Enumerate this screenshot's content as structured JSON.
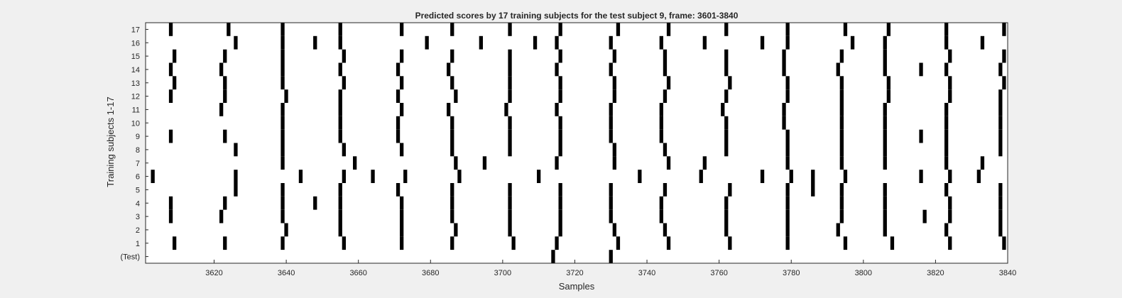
{
  "chart_data": {
    "type": "heatmap",
    "title": "Predicted scores by 17 training subjects for the test subject 9, frame: 3601-3840",
    "xlabel": "Samples",
    "ylabel": "Training subjects 1-17",
    "xlim": [
      3601,
      3840
    ],
    "x_ticks": [
      3620,
      3640,
      3660,
      3680,
      3700,
      3720,
      3740,
      3760,
      3780,
      3800,
      3820,
      3840
    ],
    "y_tick_labels": [
      "(Test)",
      "1",
      "2",
      "3",
      "4",
      "5",
      "6",
      "7",
      "8",
      "9",
      "10",
      "11",
      "12",
      "13",
      "14",
      "15",
      "16",
      "17"
    ],
    "background_color": "#ffffff",
    "mark_color": "#000000",
    "grid": false,
    "legend": "none",
    "rows": [
      {
        "label": "(Test)",
        "x": [
          3714,
          3730
        ]
      },
      {
        "label": "1",
        "x": [
          3609,
          3623,
          3639,
          3656,
          3672,
          3686,
          3703,
          3715,
          3732,
          3746,
          3763,
          3779,
          3795,
          3808,
          3824,
          3839
        ]
      },
      {
        "label": "2",
        "x": [
          3640,
          3655,
          3672,
          3687,
          3702,
          3716,
          3731,
          3745,
          3762,
          3779,
          3793,
          3806,
          3823,
          3838
        ]
      },
      {
        "label": "3",
        "x": [
          3608,
          3622,
          3639,
          3655,
          3672,
          3686,
          3702,
          3716,
          3730,
          3744,
          3762,
          3779,
          3794,
          3806,
          3817,
          3824,
          3838
        ]
      },
      {
        "label": "4",
        "x": [
          3608,
          3623,
          3639,
          3648,
          3655,
          3672,
          3686,
          3702,
          3716,
          3730,
          3744,
          3762,
          3779,
          3794,
          3806,
          3824,
          3838
        ]
      },
      {
        "label": "5",
        "x": [
          3626,
          3639,
          3655,
          3671,
          3686,
          3702,
          3716,
          3730,
          3745,
          3763,
          3779,
          3786,
          3794,
          3806,
          3823,
          3838
        ]
      },
      {
        "label": "6",
        "x": [
          3603,
          3626,
          3644,
          3656,
          3664,
          3673,
          3688,
          3710,
          3738,
          3755,
          3772,
          3780,
          3786,
          3795,
          3816,
          3824,
          3832
        ]
      },
      {
        "label": "7",
        "x": [
          3639,
          3659,
          3687,
          3695,
          3715,
          3731,
          3746,
          3756,
          3779,
          3794,
          3806,
          3823,
          3833
        ]
      },
      {
        "label": "8",
        "x": [
          3626,
          3639,
          3656,
          3672,
          3686,
          3702,
          3716,
          3731,
          3745,
          3762,
          3779,
          3794,
          3806,
          3823,
          3838
        ]
      },
      {
        "label": "9",
        "x": [
          3608,
          3623,
          3639,
          3655,
          3671,
          3686,
          3702,
          3716,
          3730,
          3744,
          3762,
          3779,
          3794,
          3806,
          3816,
          3823,
          3838
        ]
      },
      {
        "label": "10",
        "x": [
          3639,
          3655,
          3671,
          3686,
          3702,
          3716,
          3730,
          3744,
          3762,
          3778,
          3794,
          3806,
          3823,
          3838
        ]
      },
      {
        "label": "11",
        "x": [
          3622,
          3639,
          3655,
          3672,
          3685,
          3701,
          3715,
          3730,
          3744,
          3761,
          3778,
          3794,
          3806,
          3823,
          3838
        ]
      },
      {
        "label": "12",
        "x": [
          3608,
          3623,
          3640,
          3655,
          3671,
          3687,
          3702,
          3716,
          3731,
          3745,
          3762,
          3779,
          3794,
          3807,
          3824,
          3838
        ]
      },
      {
        "label": "13",
        "x": [
          3609,
          3623,
          3639,
          3656,
          3672,
          3686,
          3702,
          3716,
          3731,
          3746,
          3763,
          3779,
          3794,
          3807,
          3824,
          3839
        ]
      },
      {
        "label": "14",
        "x": [
          3608,
          3622,
          3639,
          3655,
          3671,
          3685,
          3702,
          3715,
          3730,
          3745,
          3762,
          3778,
          3793,
          3806,
          3816,
          3823,
          3838
        ]
      },
      {
        "label": "15",
        "x": [
          3609,
          3623,
          3639,
          3656,
          3672,
          3686,
          3702,
          3716,
          3731,
          3745,
          3762,
          3778,
          3794,
          3806,
          3824,
          3839
        ]
      },
      {
        "label": "16",
        "x": [
          3626,
          3639,
          3648,
          3655,
          3679,
          3694,
          3709,
          3715,
          3730,
          3744,
          3756,
          3772,
          3779,
          3797,
          3806,
          3823,
          3833
        ]
      },
      {
        "label": "17",
        "x": [
          3608,
          3624,
          3639,
          3655,
          3672,
          3686,
          3702,
          3716,
          3732,
          3746,
          3762,
          3779,
          3795,
          3807,
          3823,
          3839
        ]
      }
    ]
  }
}
